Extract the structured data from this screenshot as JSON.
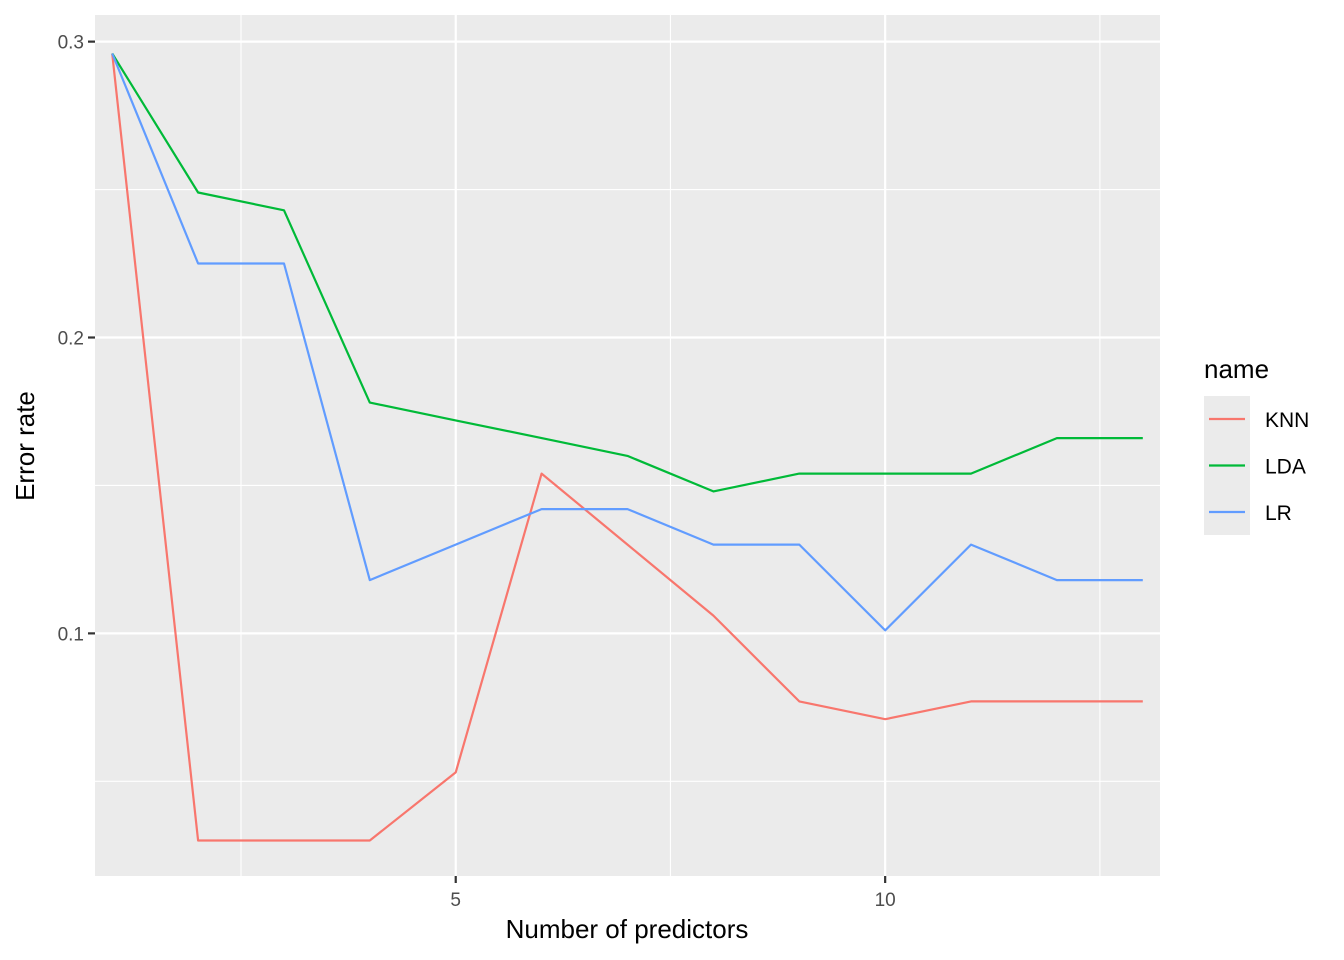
{
  "chart_data": {
    "type": "line",
    "title": "",
    "xlabel": "Number of predictors",
    "ylabel": "Error rate",
    "xlim": [
      0.8,
      13.2
    ],
    "ylim": [
      0.018,
      0.309
    ],
    "x_ticks": [
      5,
      10
    ],
    "x_tick_labels": [
      "5",
      "10"
    ],
    "x_minor_ticks": [
      2.5,
      7.5,
      12.5
    ],
    "y_ticks": [
      0.1,
      0.2,
      0.3
    ],
    "y_tick_labels": [
      "0.1",
      "0.2",
      "0.3"
    ],
    "y_minor_ticks": [
      0.05,
      0.15,
      0.25
    ],
    "grid": true,
    "legend_title": "name",
    "legend_position": "right",
    "x": [
      1,
      2,
      3,
      4,
      5,
      6,
      7,
      8,
      9,
      10,
      11,
      12,
      13
    ],
    "series": [
      {
        "name": "KNN",
        "color": "#F8766D",
        "values": [
          0.296,
          0.03,
          0.03,
          0.03,
          0.053,
          0.154,
          0.13,
          0.106,
          0.077,
          0.071,
          0.077,
          0.077,
          0.077
        ]
      },
      {
        "name": "LDA",
        "color": "#00BA38",
        "values": [
          0.296,
          0.249,
          0.243,
          0.178,
          0.172,
          0.166,
          0.16,
          0.148,
          0.154,
          0.154,
          0.154,
          0.166,
          0.166
        ]
      },
      {
        "name": "LR",
        "color": "#619CFF",
        "values": [
          0.296,
          0.225,
          0.225,
          0.118,
          0.13,
          0.142,
          0.142,
          0.13,
          0.13,
          0.101,
          0.13,
          0.118,
          0.118
        ]
      }
    ]
  }
}
